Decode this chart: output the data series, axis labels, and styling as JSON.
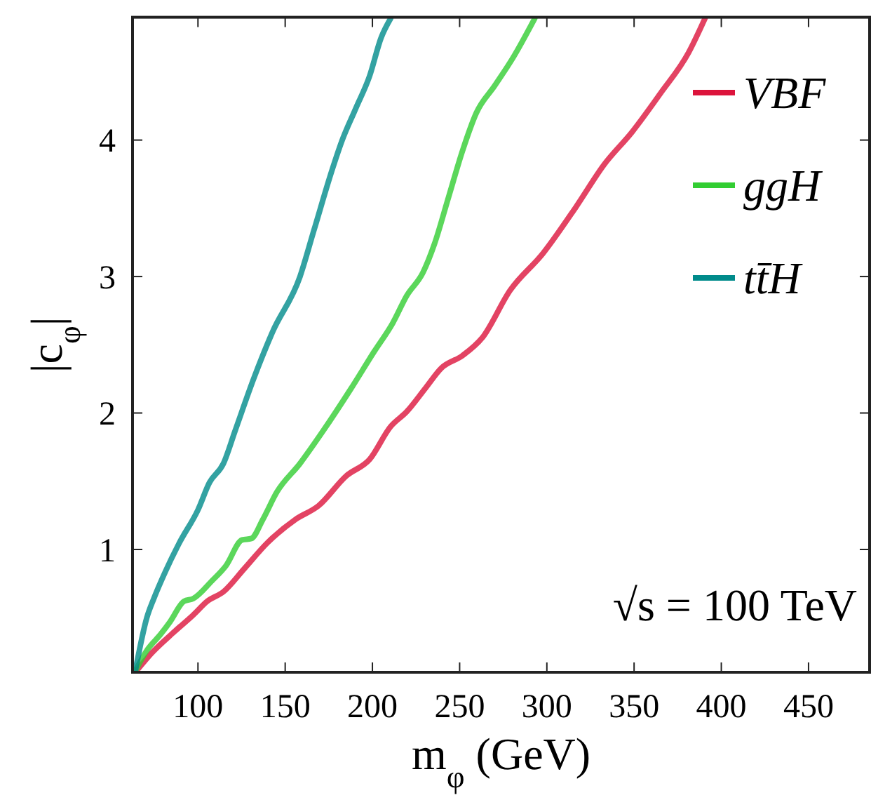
{
  "chart_data": {
    "type": "line",
    "xlabel": "m$_{φ}$ (GeV)",
    "ylabel": "|c$_{φ}$|",
    "xlim": [
      62.5,
      485
    ],
    "ylim": [
      0.1,
      4.9
    ],
    "xticks": [
      100,
      150,
      200,
      250,
      300,
      350,
      400,
      450
    ],
    "yticks": [
      1,
      2,
      3,
      4
    ],
    "grid": false,
    "legend": "top right",
    "marker": "none",
    "line_style": "solid",
    "annotations": [
      "√s = 100 TeV"
    ],
    "series": [
      {
        "name": "VBF",
        "color": "#dc143c",
        "x": [
          65.4,
          73.4,
          86.7,
          97.3,
          105.3,
          114.6,
          126.6,
          139.9,
          155.9,
          169.1,
          185.1,
          198.4,
          210.4,
          219.7,
          230.3,
          239.6,
          251.6,
          262.9,
          279,
          297.8,
          316.7,
          332.8,
          348.9,
          365,
          381.2,
          390.6
        ],
        "values": [
          0.12,
          0.24,
          0.4,
          0.52,
          0.62,
          0.69,
          0.86,
          1.05,
          1.22,
          1.32,
          1.54,
          1.66,
          1.9,
          2.01,
          2.18,
          2.33,
          2.42,
          2.55,
          2.9,
          3.17,
          3.51,
          3.82,
          4.06,
          4.34,
          4.64,
          4.89
        ]
      },
      {
        "name": "ggH",
        "color": "#32cd32",
        "x": [
          64.1,
          70.7,
          78.7,
          84,
          92,
          97.3,
          108,
          116,
          125.3,
          130.6,
          137.2,
          145.2,
          158.5,
          171.8,
          187.8,
          201,
          211.7,
          219.7,
          229,
          235.6,
          243.6,
          251.6,
          259.6,
          270.2,
          280.9,
          293
        ],
        "values": [
          0.11,
          0.26,
          0.38,
          0.47,
          0.62,
          0.64,
          0.77,
          0.88,
          1.07,
          1.08,
          1.22,
          1.42,
          1.63,
          1.87,
          2.18,
          2.45,
          2.66,
          2.86,
          3.03,
          3.24,
          3.58,
          3.92,
          4.2,
          4.4,
          4.61,
          4.89
        ]
      },
      {
        "name": "tt̄H",
        "color": "#008b8b",
        "x": [
          64.1,
          70.7,
          74.7,
          81.4,
          89.4,
          100,
          106.6,
          114.6,
          121.3,
          131.9,
          142.6,
          158.5,
          166.5,
          177.1,
          182.4,
          190.4,
          198.4,
          205,
          210.4
        ],
        "values": [
          0.11,
          0.5,
          0.64,
          0.84,
          1.05,
          1.29,
          1.49,
          1.63,
          1.87,
          2.25,
          2.59,
          3,
          3.34,
          3.79,
          3.99,
          4.23,
          4.47,
          4.75,
          4.89
        ]
      }
    ]
  }
}
